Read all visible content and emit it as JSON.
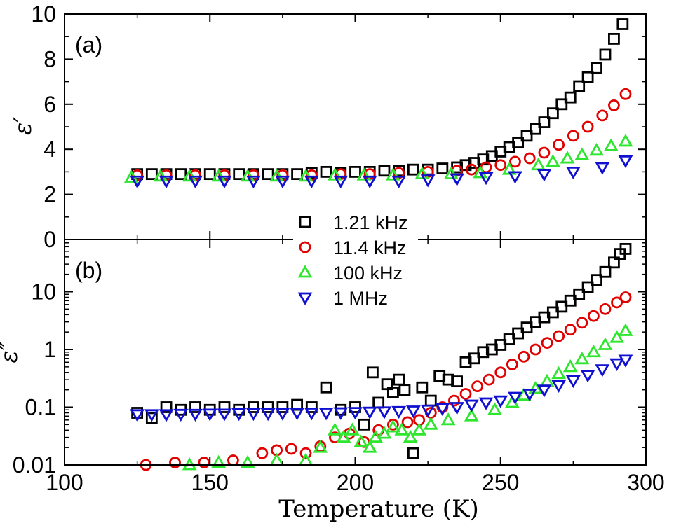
{
  "figure": {
    "xlabel": "Temperature (K)",
    "x_ticks": [
      "100",
      "150",
      "200",
      "250",
      "300"
    ]
  },
  "chart_data": [
    {
      "type": "scatter",
      "panel_label": "(a)",
      "ylabel": "ε′",
      "xlim": [
        100,
        300
      ],
      "ylim": [
        0,
        10
      ],
      "yscale": "linear",
      "y_ticks": [
        "0",
        "2",
        "4",
        "6",
        "8",
        "10"
      ],
      "grid": false,
      "series": [
        {
          "name": "1.21 kHz",
          "marker": "square",
          "color": "#000000",
          "points": [
            [
              125,
              2.9
            ],
            [
              130,
              2.9
            ],
            [
              135,
              2.9
            ],
            [
              140,
              2.9
            ],
            [
              145,
              2.9
            ],
            [
              150,
              2.9
            ],
            [
              155,
              2.9
            ],
            [
              160,
              2.9
            ],
            [
              165,
              2.9
            ],
            [
              170,
              2.9
            ],
            [
              175,
              2.9
            ],
            [
              180,
              2.9
            ],
            [
              185,
              2.95
            ],
            [
              190,
              3.0
            ],
            [
              195,
              2.95
            ],
            [
              200,
              3.0
            ],
            [
              205,
              3.0
            ],
            [
              210,
              3.05
            ],
            [
              215,
              3.05
            ],
            [
              220,
              3.1
            ],
            [
              225,
              3.1
            ],
            [
              230,
              3.15
            ],
            [
              235,
              3.2
            ],
            [
              238,
              3.3
            ],
            [
              241,
              3.4
            ],
            [
              244,
              3.55
            ],
            [
              247,
              3.7
            ],
            [
              250,
              3.9
            ],
            [
              253,
              4.1
            ],
            [
              256,
              4.3
            ],
            [
              259,
              4.6
            ],
            [
              262,
              4.9
            ],
            [
              265,
              5.2
            ],
            [
              268,
              5.6
            ],
            [
              271,
              6.0
            ],
            [
              274,
              6.3
            ],
            [
              277,
              6.8
            ],
            [
              280,
              7.2
            ],
            [
              283,
              7.6
            ],
            [
              286,
              8.2
            ],
            [
              289,
              8.9
            ],
            [
              292,
              9.55
            ]
          ]
        },
        {
          "name": "11.4 kHz",
          "marker": "circle",
          "color": "#e00000",
          "points": [
            [
              125,
              2.85
            ],
            [
              135,
              2.85
            ],
            [
              145,
              2.85
            ],
            [
              155,
              2.85
            ],
            [
              165,
              2.85
            ],
            [
              175,
              2.85
            ],
            [
              185,
              2.85
            ],
            [
              195,
              2.9
            ],
            [
              205,
              2.9
            ],
            [
              215,
              2.95
            ],
            [
              225,
              3.0
            ],
            [
              235,
              3.05
            ],
            [
              240,
              3.1
            ],
            [
              245,
              3.2
            ],
            [
              250,
              3.3
            ],
            [
              255,
              3.45
            ],
            [
              260,
              3.6
            ],
            [
              265,
              3.85
            ],
            [
              270,
              4.2
            ],
            [
              275,
              4.6
            ],
            [
              280,
              5.0
            ],
            [
              285,
              5.5
            ],
            [
              289,
              5.95
            ],
            [
              293,
              6.45
            ]
          ]
        },
        {
          "name": "100 kHz",
          "marker": "triangle-up",
          "color": "#2ee62e",
          "points": [
            [
              123,
              2.75
            ],
            [
              133,
              2.8
            ],
            [
              143,
              2.8
            ],
            [
              153,
              2.8
            ],
            [
              163,
              2.8
            ],
            [
              173,
              2.8
            ],
            [
              183,
              2.8
            ],
            [
              193,
              2.85
            ],
            [
              203,
              2.85
            ],
            [
              213,
              2.85
            ],
            [
              223,
              2.9
            ],
            [
              233,
              2.9
            ],
            [
              243,
              2.95
            ],
            [
              253,
              3.1
            ],
            [
              263,
              3.3
            ],
            [
              268,
              3.45
            ],
            [
              273,
              3.6
            ],
            [
              278,
              3.75
            ],
            [
              283,
              3.95
            ],
            [
              288,
              4.15
            ],
            [
              293,
              4.35
            ]
          ]
        },
        {
          "name": "1 MHz",
          "marker": "triangle-down",
          "color": "#1010d0",
          "points": [
            [
              125,
              2.6
            ],
            [
              135,
              2.6
            ],
            [
              145,
              2.6
            ],
            [
              155,
              2.6
            ],
            [
              165,
              2.6
            ],
            [
              175,
              2.6
            ],
            [
              185,
              2.6
            ],
            [
              195,
              2.6
            ],
            [
              205,
              2.6
            ],
            [
              215,
              2.6
            ],
            [
              225,
              2.65
            ],
            [
              235,
              2.7
            ],
            [
              245,
              2.75
            ],
            [
              255,
              2.8
            ],
            [
              265,
              2.9
            ],
            [
              275,
              3.0
            ],
            [
              285,
              3.2
            ],
            [
              293,
              3.5
            ]
          ]
        }
      ]
    },
    {
      "type": "scatter",
      "panel_label": "(b)",
      "ylabel": "ε″",
      "xlim": [
        100,
        300
      ],
      "ylim": [
        0.01,
        80
      ],
      "yscale": "log",
      "y_ticks": [
        "0.01",
        "0.1",
        "1",
        "10"
      ],
      "grid": false,
      "series": [
        {
          "name": "1.21 kHz",
          "marker": "square",
          "color": "#000000",
          "points": [
            [
              125,
              0.08
            ],
            [
              130,
              0.065
            ],
            [
              135,
              0.1
            ],
            [
              140,
              0.09
            ],
            [
              145,
              0.1
            ],
            [
              150,
              0.09
            ],
            [
              155,
              0.1
            ],
            [
              160,
              0.09
            ],
            [
              165,
              0.1
            ],
            [
              170,
              0.1
            ],
            [
              175,
              0.1
            ],
            [
              180,
              0.11
            ],
            [
              185,
              0.1
            ],
            [
              190,
              0.22
            ],
            [
              195,
              0.09
            ],
            [
              200,
              0.1
            ],
            [
              203,
              0.05
            ],
            [
              206,
              0.4
            ],
            [
              208,
              0.12
            ],
            [
              211,
              0.25
            ],
            [
              213,
              0.18
            ],
            [
              215,
              0.3
            ],
            [
              217,
              0.2
            ],
            [
              220,
              0.016
            ],
            [
              223,
              0.22
            ],
            [
              226,
              0.13
            ],
            [
              229,
              0.35
            ],
            [
              232,
              0.3
            ],
            [
              235,
              0.28
            ],
            [
              238,
              0.6
            ],
            [
              241,
              0.7
            ],
            [
              244,
              0.9
            ],
            [
              247,
              1.0
            ],
            [
              250,
              1.2
            ],
            [
              253,
              1.5
            ],
            [
              256,
              1.9
            ],
            [
              259,
              2.4
            ],
            [
              262,
              3.0
            ],
            [
              265,
              3.6
            ],
            [
              268,
              4.4
            ],
            [
              271,
              5.5
            ],
            [
              274,
              7.0
            ],
            [
              277,
              9.0
            ],
            [
              280,
              12
            ],
            [
              283,
              16
            ],
            [
              286,
              22
            ],
            [
              289,
              32
            ],
            [
              291,
              45
            ],
            [
              293,
              55
            ]
          ]
        },
        {
          "name": "11.4 kHz",
          "marker": "circle",
          "color": "#e00000",
          "points": [
            [
              128,
              0.01
            ],
            [
              138,
              0.011
            ],
            [
              148,
              0.011
            ],
            [
              158,
              0.012
            ],
            [
              168,
              0.016
            ],
            [
              173,
              0.018
            ],
            [
              178,
              0.019
            ],
            [
              183,
              0.016
            ],
            [
              188,
              0.021
            ],
            [
              193,
              0.03
            ],
            [
              198,
              0.035
            ],
            [
              203,
              0.025
            ],
            [
              208,
              0.04
            ],
            [
              213,
              0.05
            ],
            [
              218,
              0.055
            ],
            [
              222,
              0.06
            ],
            [
              226,
              0.08
            ],
            [
              230,
              0.1
            ],
            [
              234,
              0.13
            ],
            [
              238,
              0.17
            ],
            [
              242,
              0.23
            ],
            [
              246,
              0.3
            ],
            [
              250,
              0.4
            ],
            [
              254,
              0.55
            ],
            [
              258,
              0.75
            ],
            [
              262,
              1.0
            ],
            [
              266,
              1.3
            ],
            [
              270,
              1.7
            ],
            [
              274,
              2.2
            ],
            [
              278,
              2.9
            ],
            [
              282,
              3.8
            ],
            [
              286,
              5.0
            ],
            [
              290,
              6.5
            ],
            [
              293,
              8.0
            ]
          ]
        },
        {
          "name": "100 kHz",
          "marker": "triangle-up",
          "color": "#2ee62e",
          "points": [
            [
              143,
              0.01
            ],
            [
              153,
              0.011
            ],
            [
              163,
              0.011
            ],
            [
              173,
              0.012
            ],
            [
              183,
              0.012
            ],
            [
              188,
              0.02
            ],
            [
              193,
              0.04
            ],
            [
              196,
              0.03
            ],
            [
              199,
              0.04
            ],
            [
              202,
              0.025
            ],
            [
              205,
              0.02
            ],
            [
              207,
              0.03
            ],
            [
              210,
              0.035
            ],
            [
              213,
              0.045
            ],
            [
              216,
              0.04
            ],
            [
              219,
              0.03
            ],
            [
              222,
              0.04
            ],
            [
              226,
              0.05
            ],
            [
              232,
              0.06
            ],
            [
              240,
              0.07
            ],
            [
              248,
              0.09
            ],
            [
              254,
              0.12
            ],
            [
              258,
              0.16
            ],
            [
              262,
              0.21
            ],
            [
              266,
              0.28
            ],
            [
              270,
              0.38
            ],
            [
              274,
              0.5
            ],
            [
              278,
              0.68
            ],
            [
              282,
              0.9
            ],
            [
              286,
              1.2
            ],
            [
              290,
              1.6
            ],
            [
              293,
              2.1
            ]
          ]
        },
        {
          "name": "1 MHz",
          "marker": "triangle-down",
          "color": "#1010d0",
          "points": [
            [
              125,
              0.075
            ],
            [
              130,
              0.075
            ],
            [
              135,
              0.075
            ],
            [
              140,
              0.076
            ],
            [
              145,
              0.076
            ],
            [
              150,
              0.077
            ],
            [
              155,
              0.077
            ],
            [
              160,
              0.078
            ],
            [
              165,
              0.078
            ],
            [
              170,
              0.078
            ],
            [
              175,
              0.079
            ],
            [
              180,
              0.08
            ],
            [
              185,
              0.08
            ],
            [
              190,
              0.08
            ],
            [
              195,
              0.081
            ],
            [
              200,
              0.082
            ],
            [
              205,
              0.083
            ],
            [
              210,
              0.084
            ],
            [
              215,
              0.085
            ],
            [
              220,
              0.087
            ],
            [
              225,
              0.09
            ],
            [
              230,
              0.095
            ],
            [
              235,
              0.1
            ],
            [
              240,
              0.11
            ],
            [
              245,
              0.12
            ],
            [
              250,
              0.13
            ],
            [
              255,
              0.15
            ],
            [
              260,
              0.17
            ],
            [
              265,
              0.2
            ],
            [
              270,
              0.24
            ],
            [
              275,
              0.29
            ],
            [
              280,
              0.36
            ],
            [
              285,
              0.45
            ],
            [
              290,
              0.57
            ],
            [
              293,
              0.66
            ]
          ]
        }
      ]
    }
  ],
  "legend": {
    "placement": "center",
    "entries": [
      {
        "label": "1.21 kHz",
        "marker": "square",
        "color": "#000000"
      },
      {
        "label": "11.4 kHz",
        "marker": "circle",
        "color": "#e00000"
      },
      {
        "label": "100 kHz",
        "marker": "triangle-up",
        "color": "#2ee62e"
      },
      {
        "label": "1 MHz",
        "marker": "triangle-down",
        "color": "#1010d0"
      }
    ]
  }
}
